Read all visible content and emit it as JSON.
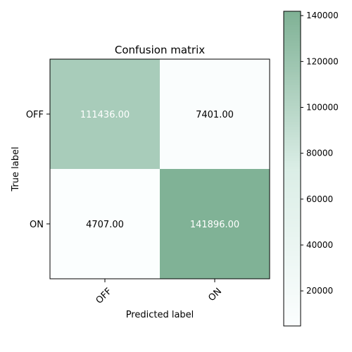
{
  "chart_data": {
    "type": "heatmap",
    "title": "Confusion matrix",
    "xlabel": "Predicted label",
    "ylabel": "True label",
    "x_categories": [
      "OFF",
      "ON"
    ],
    "y_categories": [
      "OFF",
      "ON"
    ],
    "values": [
      [
        111436,
        7401
      ],
      [
        4707,
        141896
      ]
    ],
    "cell_labels": [
      [
        "111436.00",
        "7401.00"
      ],
      [
        "4707.00",
        "141896.00"
      ]
    ],
    "value_range": [
      4707,
      141896
    ],
    "colormap": "BuGn",
    "colorbar": {
      "ticks": [
        20000,
        40000,
        60000,
        80000,
        100000,
        120000,
        140000
      ],
      "tick_labels": [
        "20000",
        "40000",
        "60000",
        "80000",
        "100000",
        "120000",
        "140000"
      ]
    },
    "colors": {
      "text_light": "#ffffff",
      "text_dark": "#000000"
    }
  }
}
